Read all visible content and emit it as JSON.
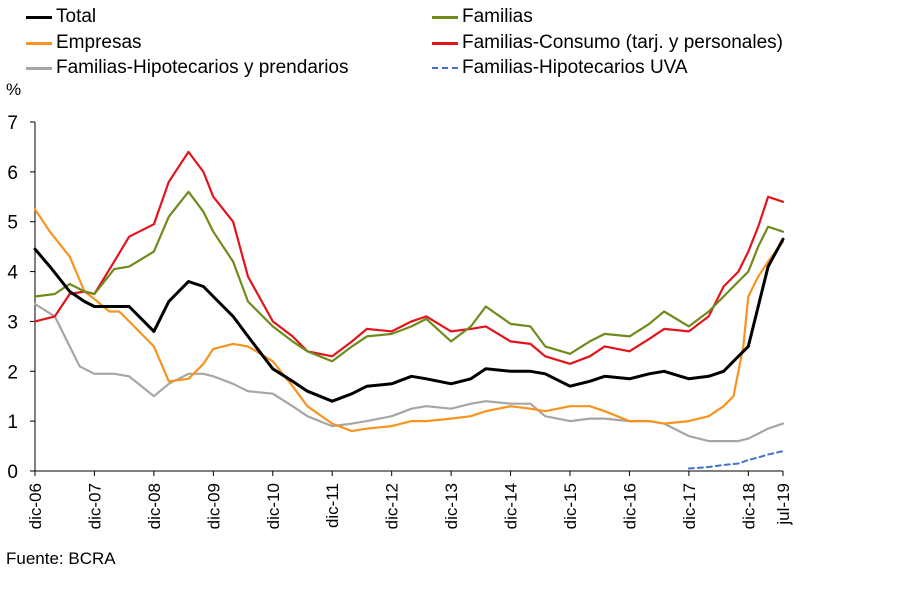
{
  "chart_data": {
    "type": "line",
    "ylabel": "%",
    "ylim": [
      0,
      7
    ],
    "yticks": [
      0,
      1,
      2,
      3,
      4,
      5,
      6,
      7
    ],
    "x_tick_labels": [
      "dic-06",
      "dic-07",
      "dic-08",
      "dic-09",
      "dic-10",
      "dic-11",
      "dic-12",
      "dic-13",
      "dic-14",
      "dic-15",
      "dic-16",
      "dic-17",
      "dic-18",
      "jul-19"
    ],
    "x_tick_positions": [
      2006.917,
      2007.917,
      2008.917,
      2009.917,
      2010.917,
      2011.917,
      2012.917,
      2013.917,
      2014.917,
      2015.917,
      2016.917,
      2017.917,
      2018.917,
      2019.5
    ],
    "xlim": [
      2006.917,
      2019.5
    ],
    "legend_position": "top",
    "source": "Fuente: BCRA",
    "series": [
      {
        "name": "Total",
        "color": "#000000",
        "dashed": false,
        "x": [
          2006.917,
          2007.167,
          2007.5,
          2007.75,
          2007.917,
          2008.25,
          2008.5,
          2008.917,
          2009.167,
          2009.5,
          2009.75,
          2009.917,
          2010.25,
          2010.5,
          2010.917,
          2011.25,
          2011.5,
          2011.917,
          2012.25,
          2012.5,
          2012.917,
          2013.25,
          2013.5,
          2013.917,
          2014.25,
          2014.5,
          2014.917,
          2015.25,
          2015.5,
          2015.917,
          2016.25,
          2016.5,
          2016.917,
          2017.25,
          2017.5,
          2017.917,
          2018.25,
          2018.5,
          2018.75,
          2018.917,
          2019.083,
          2019.25,
          2019.5
        ],
        "y": [
          4.45,
          4.1,
          3.6,
          3.4,
          3.3,
          3.3,
          3.3,
          2.8,
          3.4,
          3.8,
          3.7,
          3.5,
          3.1,
          2.7,
          2.05,
          1.8,
          1.6,
          1.4,
          1.55,
          1.7,
          1.75,
          1.9,
          1.85,
          1.75,
          1.85,
          2.05,
          2.0,
          2.0,
          1.95,
          1.7,
          1.8,
          1.9,
          1.85,
          1.95,
          2.0,
          1.85,
          1.9,
          2.0,
          2.3,
          2.5,
          3.3,
          4.1,
          4.65
        ]
      },
      {
        "name": "Familias",
        "color": "#6e8c1b",
        "dashed": false,
        "x": [
          2006.917,
          2007.25,
          2007.5,
          2007.75,
          2007.917,
          2008.25,
          2008.5,
          2008.917,
          2009.167,
          2009.5,
          2009.75,
          2009.917,
          2010.25,
          2010.5,
          2010.917,
          2011.25,
          2011.5,
          2011.917,
          2012.25,
          2012.5,
          2012.917,
          2013.25,
          2013.5,
          2013.917,
          2014.25,
          2014.5,
          2014.917,
          2015.25,
          2015.5,
          2015.917,
          2016.25,
          2016.5,
          2016.917,
          2017.25,
          2017.5,
          2017.917,
          2018.25,
          2018.5,
          2018.75,
          2018.917,
          2019.083,
          2019.25,
          2019.5
        ],
        "y": [
          3.5,
          3.55,
          3.75,
          3.6,
          3.55,
          4.05,
          4.1,
          4.4,
          5.1,
          5.6,
          5.2,
          4.8,
          4.2,
          3.4,
          2.9,
          2.6,
          2.4,
          2.2,
          2.5,
          2.7,
          2.75,
          2.9,
          3.05,
          2.6,
          2.9,
          3.3,
          2.95,
          2.9,
          2.5,
          2.35,
          2.6,
          2.75,
          2.7,
          2.95,
          3.2,
          2.9,
          3.2,
          3.5,
          3.8,
          4.0,
          4.5,
          4.9,
          4.8
        ]
      },
      {
        "name": "Empresas",
        "color": "#f7931e",
        "dashed": false,
        "x": [
          2006.917,
          2007.167,
          2007.5,
          2007.75,
          2007.917,
          2008.167,
          2008.333,
          2008.5,
          2008.917,
          2009.167,
          2009.5,
          2009.75,
          2009.917,
          2010.25,
          2010.5,
          2010.917,
          2011.25,
          2011.5,
          2011.917,
          2012.25,
          2012.5,
          2012.917,
          2013.25,
          2013.5,
          2013.917,
          2014.25,
          2014.5,
          2014.917,
          2015.25,
          2015.5,
          2015.917,
          2016.25,
          2016.5,
          2016.917,
          2017.25,
          2017.5,
          2017.917,
          2018.25,
          2018.5,
          2018.667,
          2018.833,
          2018.917,
          2019.083,
          2019.25,
          2019.5
        ],
        "y": [
          5.25,
          4.8,
          4.3,
          3.6,
          3.45,
          3.2,
          3.2,
          3.0,
          2.5,
          1.8,
          1.85,
          2.15,
          2.45,
          2.55,
          2.5,
          2.2,
          1.7,
          1.3,
          0.95,
          0.8,
          0.85,
          0.9,
          1.0,
          1.0,
          1.05,
          1.1,
          1.2,
          1.3,
          1.25,
          1.2,
          1.3,
          1.3,
          1.2,
          1.0,
          1.0,
          0.95,
          1.0,
          1.1,
          1.3,
          1.5,
          2.5,
          3.5,
          3.9,
          4.2,
          4.6
        ]
      },
      {
        "name": "Familias-Consumo (tarj. y personales)",
        "color": "#e3141c",
        "dashed": false,
        "x": [
          2006.917,
          2007.25,
          2007.5,
          2007.75,
          2007.917,
          2008.25,
          2008.5,
          2008.917,
          2009.167,
          2009.5,
          2009.75,
          2009.917,
          2010.25,
          2010.5,
          2010.917,
          2011.25,
          2011.5,
          2011.917,
          2012.25,
          2012.5,
          2012.917,
          2013.25,
          2013.5,
          2013.917,
          2014.25,
          2014.5,
          2014.917,
          2015.25,
          2015.5,
          2015.917,
          2016.25,
          2016.5,
          2016.917,
          2017.25,
          2017.5,
          2017.917,
          2018.25,
          2018.5,
          2018.75,
          2018.917,
          2019.083,
          2019.25,
          2019.5
        ],
        "y": [
          3.0,
          3.1,
          3.55,
          3.6,
          3.55,
          4.2,
          4.7,
          4.95,
          5.8,
          6.4,
          6.0,
          5.5,
          5.0,
          3.9,
          3.0,
          2.7,
          2.4,
          2.3,
          2.6,
          2.85,
          2.8,
          3.0,
          3.1,
          2.8,
          2.85,
          2.9,
          2.6,
          2.55,
          2.3,
          2.15,
          2.3,
          2.5,
          2.4,
          2.65,
          2.85,
          2.8,
          3.1,
          3.7,
          4.0,
          4.4,
          4.9,
          5.5,
          5.4
        ]
      },
      {
        "name": "Familias-Hipotecarios y prendarios",
        "color": "#a6a6a6",
        "dashed": false,
        "x": [
          2006.917,
          2007.25,
          2007.5,
          2007.667,
          2007.917,
          2008.25,
          2008.5,
          2008.917,
          2009.167,
          2009.5,
          2009.75,
          2009.917,
          2010.25,
          2010.5,
          2010.917,
          2011.25,
          2011.5,
          2011.917,
          2012.25,
          2012.5,
          2012.917,
          2013.25,
          2013.5,
          2013.917,
          2014.25,
          2014.5,
          2014.917,
          2015.25,
          2015.5,
          2015.917,
          2016.25,
          2016.5,
          2016.917,
          2017.25,
          2017.5,
          2017.917,
          2018.25,
          2018.5,
          2018.75,
          2018.917,
          2019.083,
          2019.25,
          2019.5
        ],
        "y": [
          3.35,
          3.1,
          2.5,
          2.1,
          1.95,
          1.95,
          1.9,
          1.5,
          1.75,
          1.95,
          1.95,
          1.9,
          1.75,
          1.6,
          1.55,
          1.3,
          1.1,
          0.9,
          0.95,
          1.0,
          1.1,
          1.25,
          1.3,
          1.25,
          1.35,
          1.4,
          1.35,
          1.35,
          1.1,
          1.0,
          1.05,
          1.05,
          1.0,
          1.0,
          0.95,
          0.7,
          0.6,
          0.6,
          0.6,
          0.65,
          0.75,
          0.85,
          0.95
        ]
      },
      {
        "name": "Familias-Hipotecarios UVA",
        "color": "#4472c4",
        "dashed": true,
        "x": [
          2017.917,
          2018.25,
          2018.5,
          2018.75,
          2018.917,
          2019.083,
          2019.25,
          2019.5
        ],
        "y": [
          0.05,
          0.08,
          0.12,
          0.15,
          0.22,
          0.27,
          0.33,
          0.4
        ]
      }
    ]
  }
}
